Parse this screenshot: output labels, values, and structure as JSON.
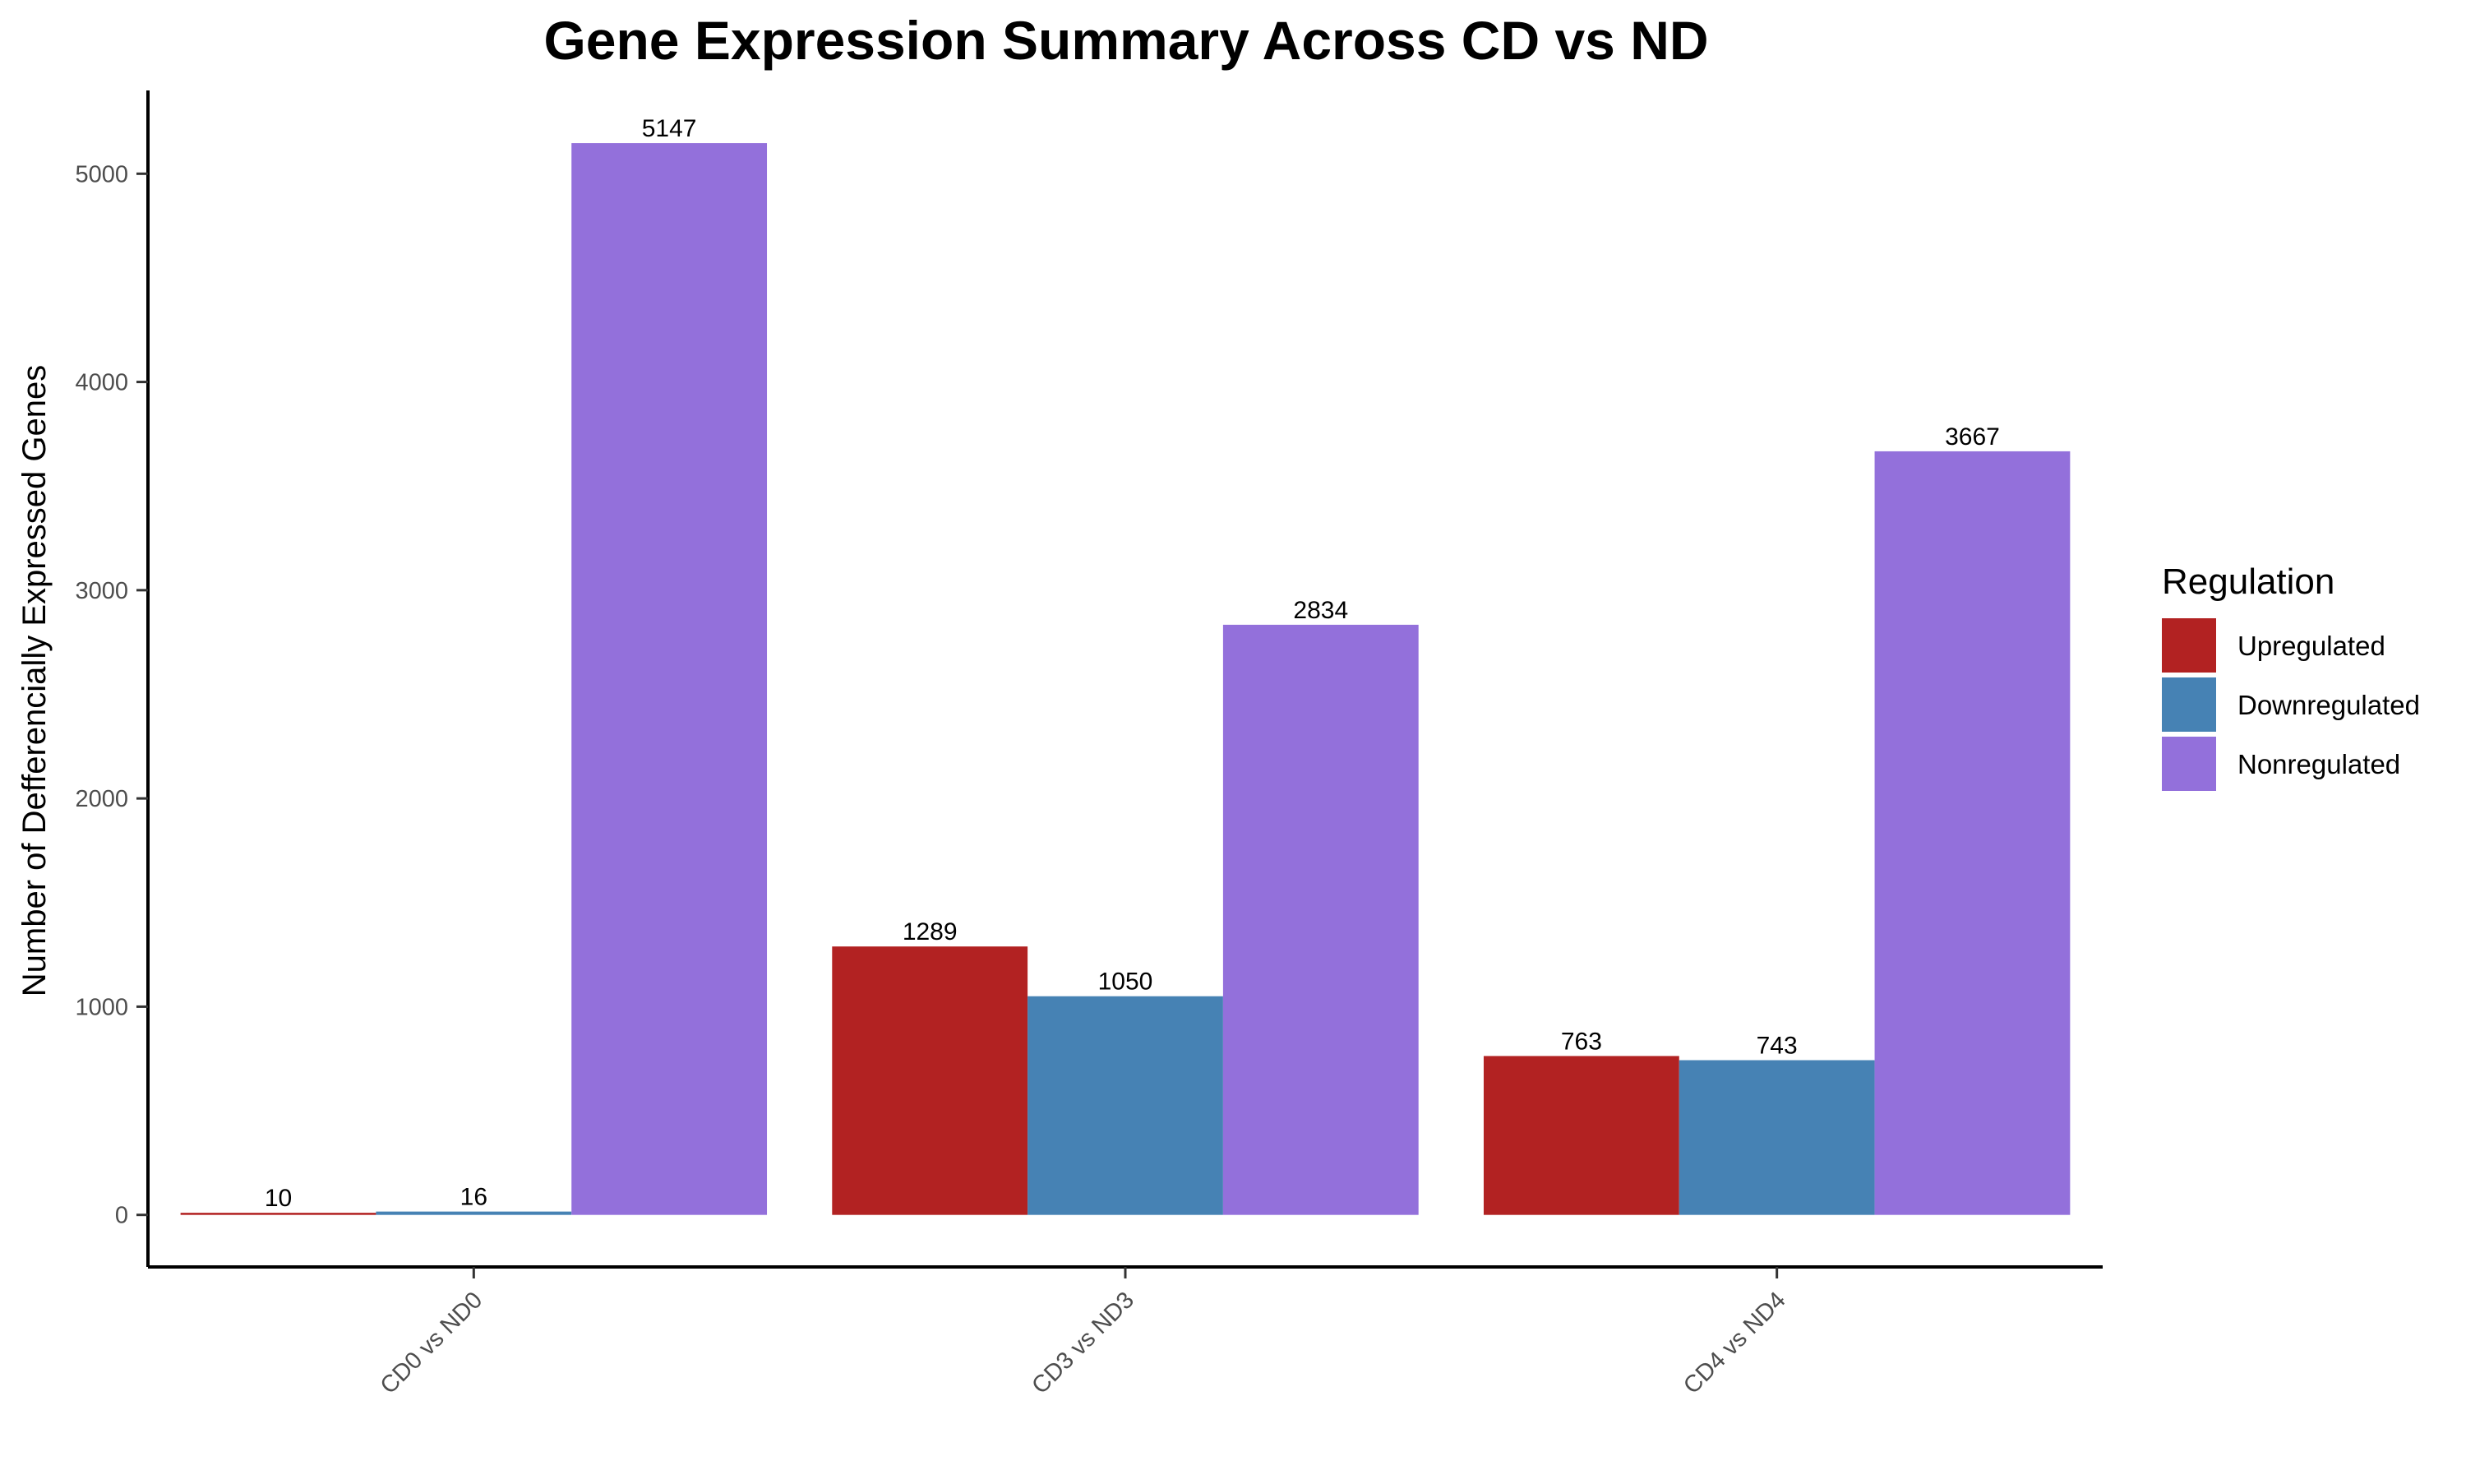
{
  "chart_data": {
    "type": "bar",
    "title": "Gene Expression Summary Across CD vs ND",
    "xlabel": "",
    "ylabel": "Number of Defferencially Expressed Genes",
    "categories": [
      "CD0 vs ND0",
      "CD3 vs ND3",
      "CD4 vs ND4"
    ],
    "series": [
      {
        "name": "Upregulated",
        "color": "#B22222",
        "values": [
          10,
          1289,
          763
        ]
      },
      {
        "name": "Downregulated",
        "color": "#4682B4",
        "values": [
          16,
          1050,
          743
        ]
      },
      {
        "name": "Nonregulated",
        "color": "#9370DB",
        "values": [
          5147,
          2834,
          3667
        ]
      }
    ],
    "ylim": [
      -250,
      5400
    ],
    "yticks": [
      0,
      1000,
      2000,
      3000,
      4000,
      5000
    ],
    "grid": false,
    "legend": {
      "title": "Regulation",
      "position": "right"
    }
  }
}
